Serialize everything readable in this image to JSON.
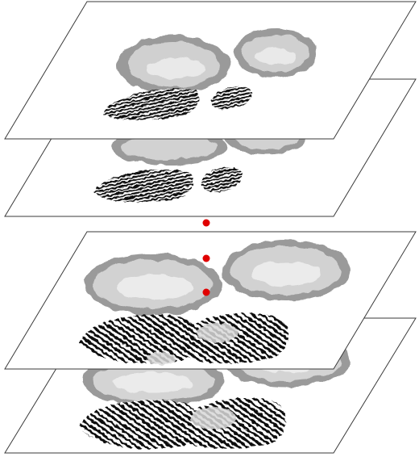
{
  "diagram": {
    "slice_count": 4,
    "marker_count": 3,
    "colors": {
      "background": "#ffffff",
      "plane_stroke": "#3a3a3a",
      "cortex_outer": "#8f8f8f",
      "cortex_fill": "#cfcfcf",
      "white_matter": "#e9e9e9",
      "cerebellum": "#111111",
      "marker": "#e00000"
    }
  }
}
